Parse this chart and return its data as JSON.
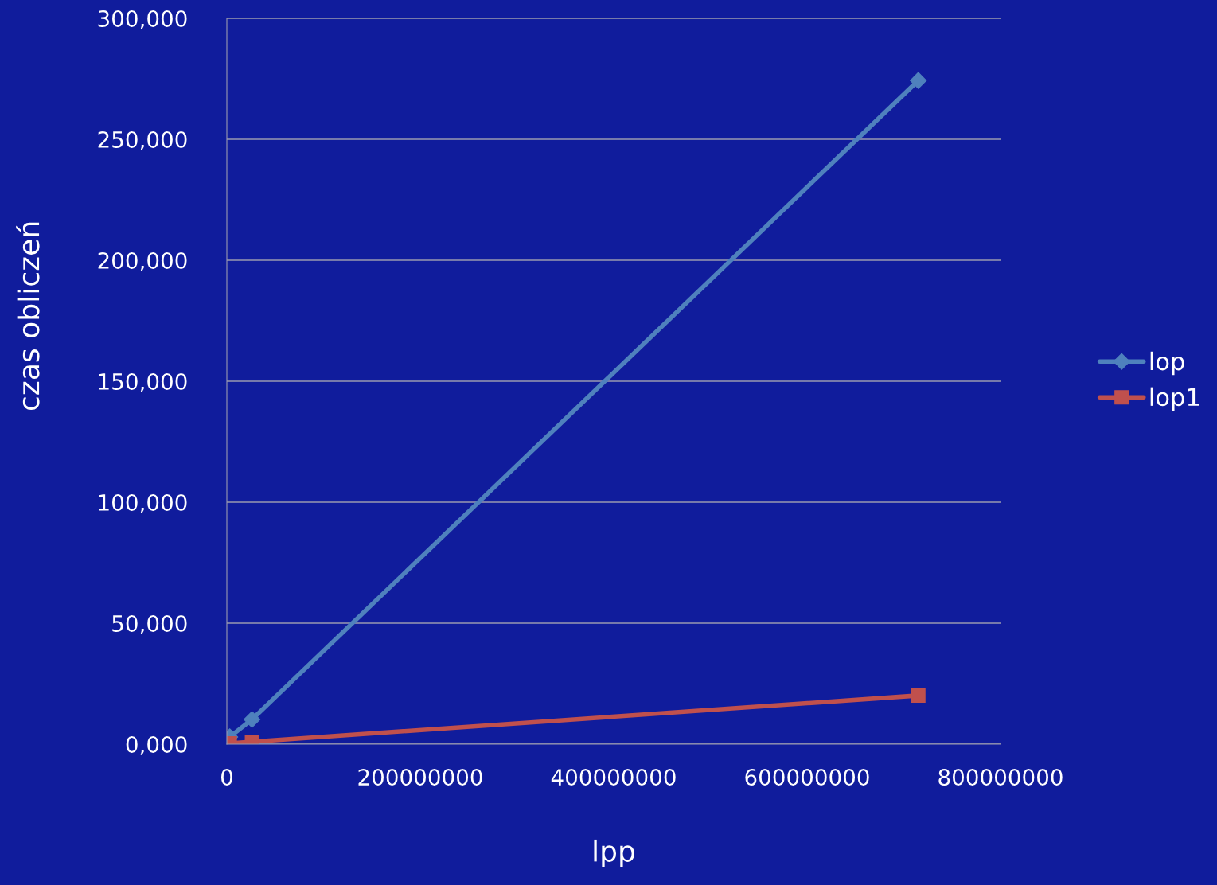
{
  "chart_data": {
    "type": "line",
    "xlabel": "lpp",
    "ylabel": "czas obliczeń",
    "x": [
      3000000,
      26000000,
      715000000
    ],
    "series": [
      {
        "name": "lop",
        "color": "#4f81bd",
        "marker": "diamond",
        "values": [
          3000,
          10200,
          274300
        ]
      },
      {
        "name": "lop1",
        "color": "#c0504d",
        "marker": "square",
        "values": [
          300,
          1000,
          20100
        ]
      }
    ],
    "xlim": [
      0,
      800000000
    ],
    "xticks": [
      0,
      200000000,
      400000000,
      600000000,
      800000000
    ],
    "ylim": [
      0,
      300000
    ],
    "yticks": [
      {
        "value": 0,
        "label": "0,000"
      },
      {
        "value": 50000,
        "label": "50,000"
      },
      {
        "value": 100000,
        "label": "100,000"
      },
      {
        "value": 150000,
        "label": "150,000"
      },
      {
        "value": 200000,
        "label": "200,000"
      },
      {
        "value": 250000,
        "label": "250,000"
      },
      {
        "value": 300000,
        "label": "300,000"
      }
    ],
    "grid": "y",
    "legend": "right",
    "line_style": "solid"
  }
}
